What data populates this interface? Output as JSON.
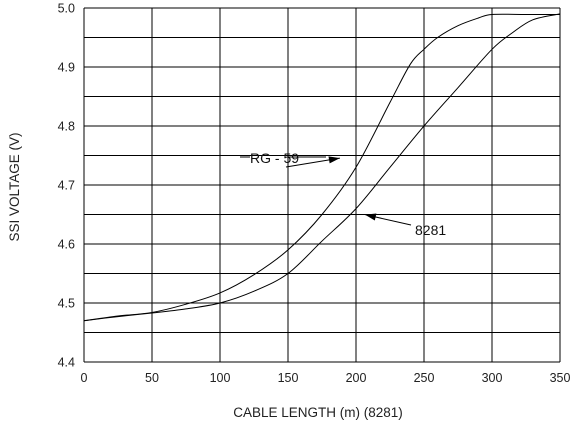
{
  "chart_data": {
    "type": "line",
    "title": "",
    "xlabel": "CABLE LENGTH (m) (8281)",
    "ylabel": "SSI VOLTAGE (V)",
    "xlim": [
      0,
      350
    ],
    "ylim": [
      4.4,
      5.0
    ],
    "x_ticks": [
      "0",
      "50",
      "100",
      "150",
      "200",
      "250",
      "300",
      "350"
    ],
    "y_ticks": [
      "4.4",
      "4.5",
      "4.6",
      "4.7",
      "4.8",
      "4.9",
      "5.0"
    ],
    "grid": true,
    "series": [
      {
        "name": "RG - 59",
        "x": [
          0,
          25,
          50,
          75,
          100,
          125,
          150,
          175,
          200,
          225,
          240,
          250,
          260,
          275,
          290,
          300,
          325,
          350
        ],
        "y": [
          4.47,
          4.478,
          4.484,
          4.498,
          4.517,
          4.548,
          4.59,
          4.65,
          4.73,
          4.84,
          4.905,
          4.93,
          4.95,
          4.97,
          4.983,
          4.989,
          4.989,
          4.989
        ]
      },
      {
        "name": "8281",
        "x": [
          0,
          25,
          50,
          75,
          100,
          125,
          150,
          175,
          200,
          225,
          250,
          275,
          300,
          315,
          330,
          350
        ],
        "y": [
          4.47,
          4.477,
          4.483,
          4.49,
          4.5,
          4.52,
          4.55,
          4.605,
          4.66,
          4.73,
          4.8,
          4.865,
          4.93,
          4.958,
          4.98,
          4.99
        ]
      }
    ],
    "annotations": [
      {
        "text": "RG - 59",
        "series": "RG - 59",
        "points_to": [
          197,
          4.727
        ]
      },
      {
        "text": "8281",
        "series": "8281",
        "points_to": [
          208,
          4.677
        ]
      }
    ]
  }
}
